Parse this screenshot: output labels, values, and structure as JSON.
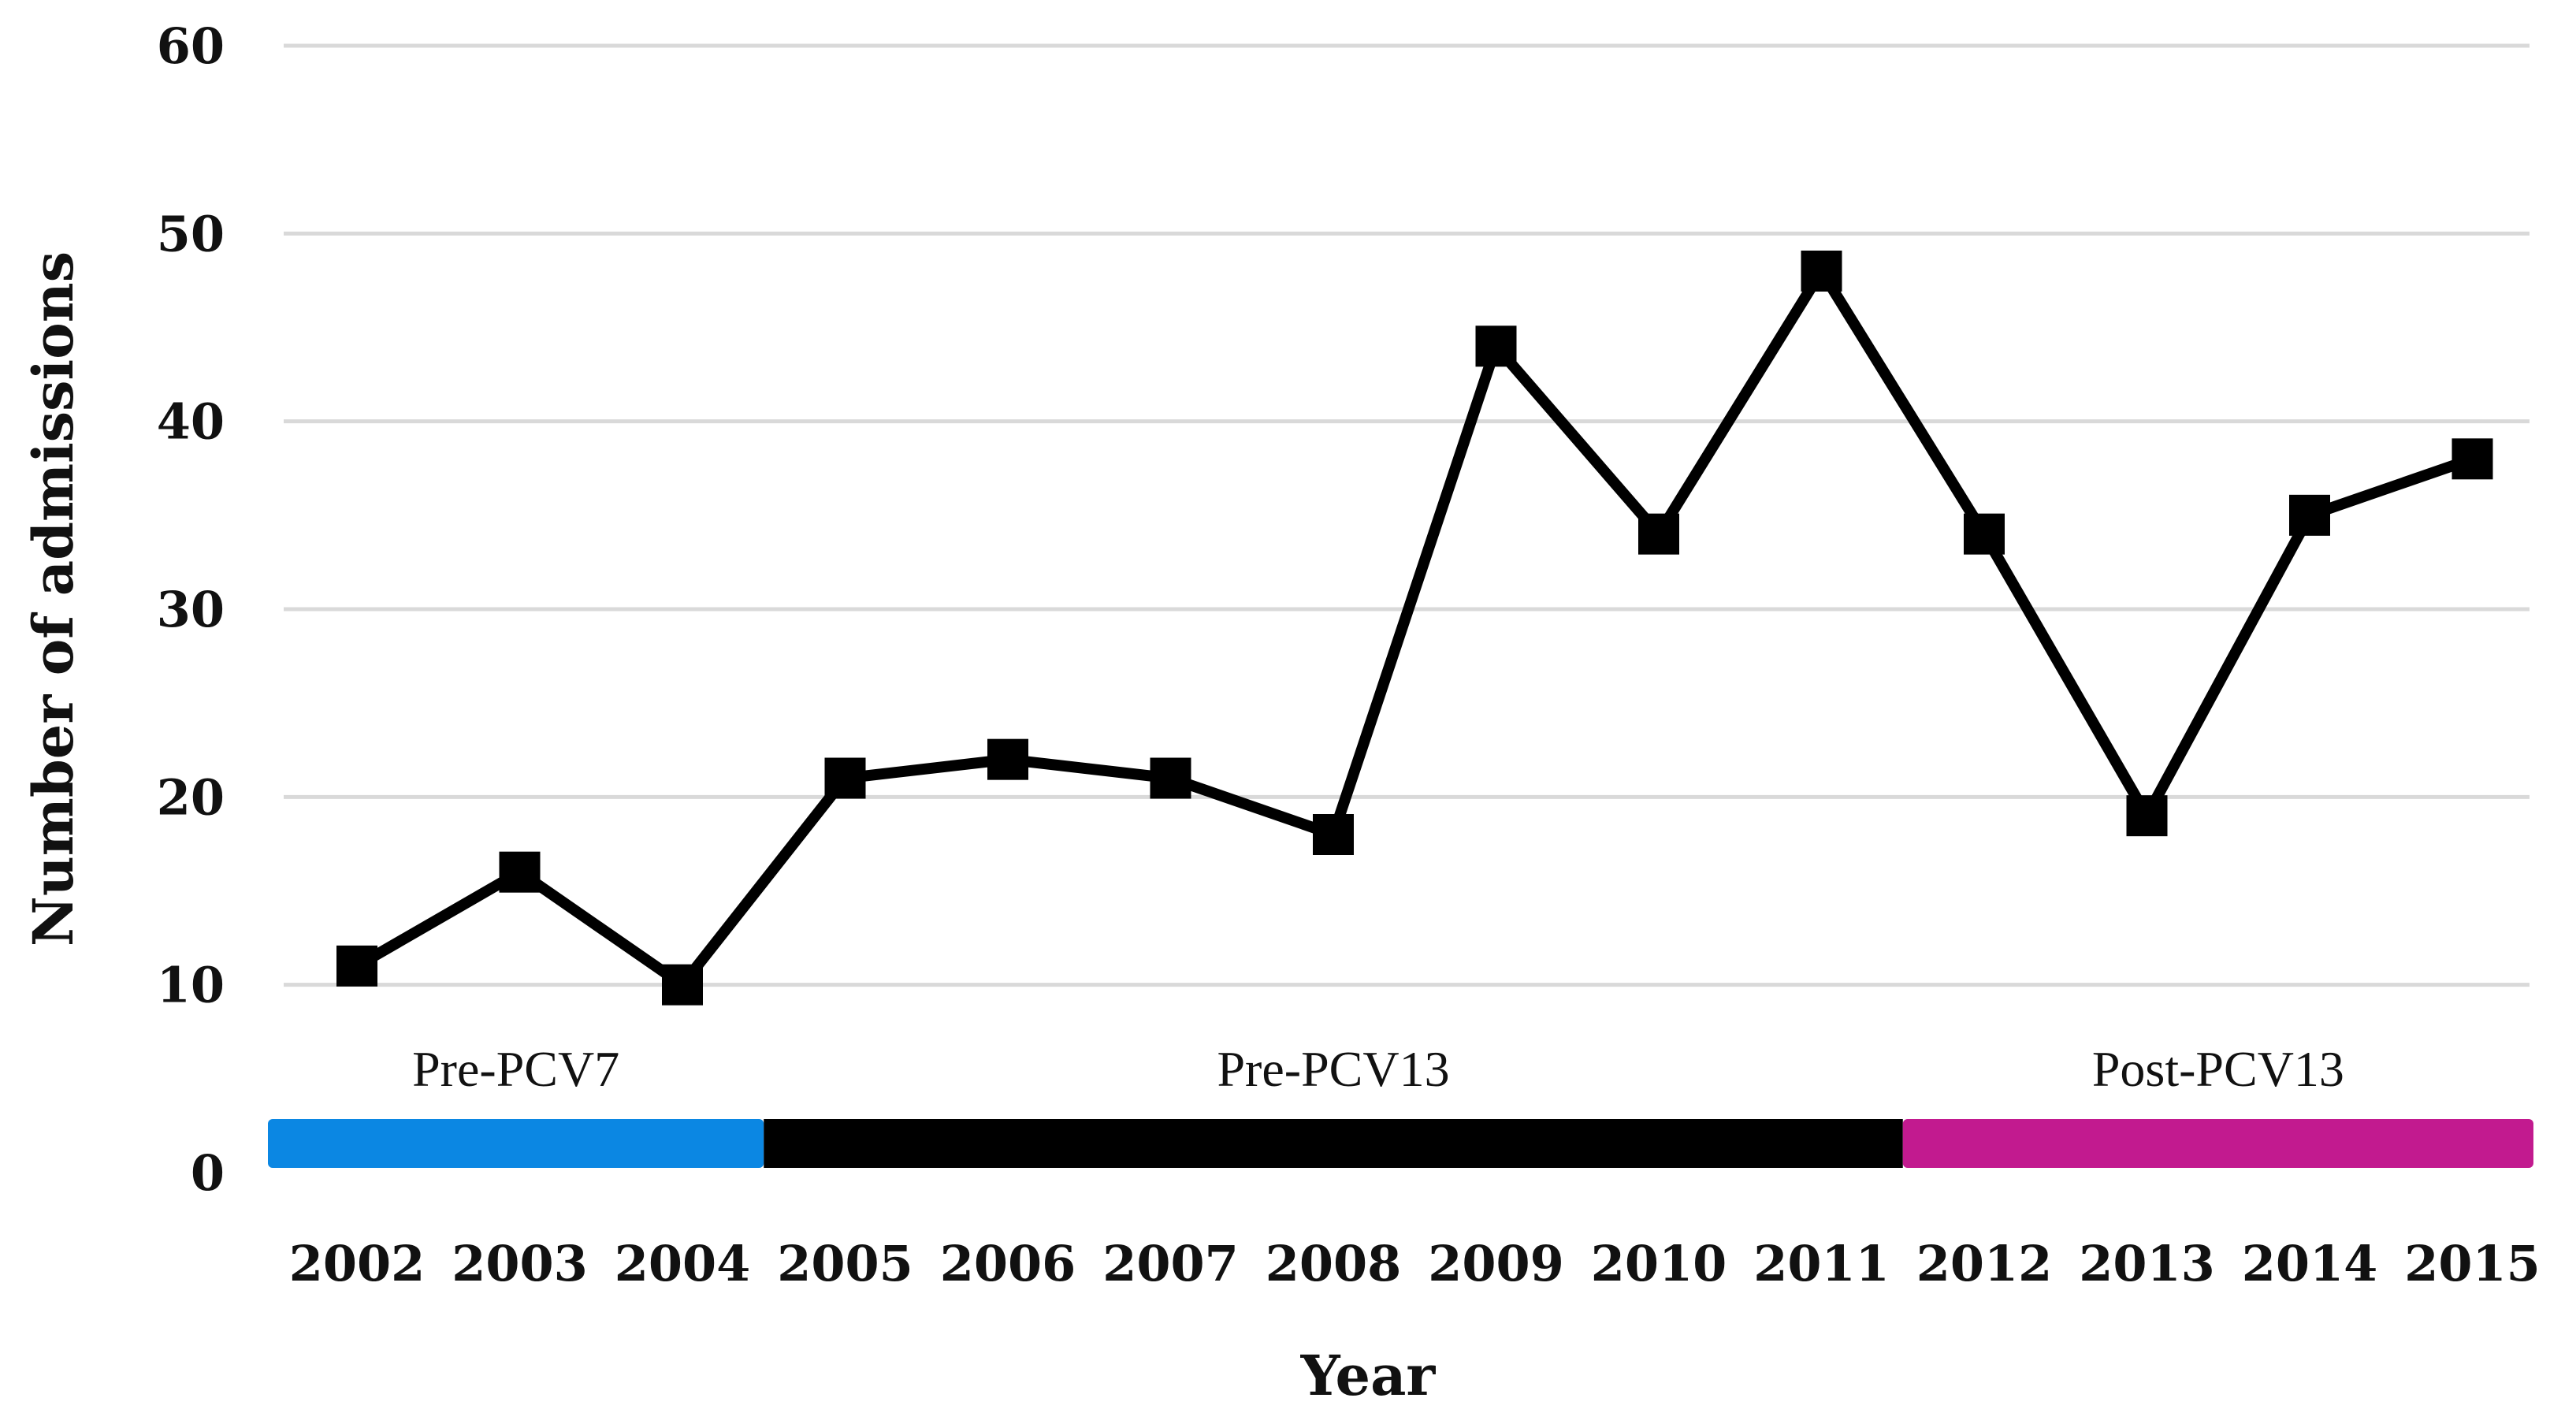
{
  "chart_data": {
    "type": "line",
    "title": "",
    "xlabel": "Year",
    "ylabel": "Number of admissions",
    "ylim": [
      0,
      60
    ],
    "yticks": [
      0,
      10,
      20,
      30,
      40,
      50,
      60
    ],
    "grid": true,
    "legend": "none",
    "marker": "square",
    "colors": {
      "line": "#000000",
      "grid": "#d9d9d9"
    },
    "categories": [
      "2002",
      "2003",
      "2004",
      "2005",
      "2006",
      "2007",
      "2008",
      "2009",
      "2010",
      "2011",
      "2012",
      "2013",
      "2014",
      "2015"
    ],
    "series": [
      {
        "values": [
          11,
          16,
          10,
          21,
          22,
          21,
          18,
          44,
          34,
          48,
          34,
          19,
          35,
          38
        ]
      }
    ],
    "periods": [
      {
        "label": "Pre-PCV7",
        "start_year": "2002",
        "end_year": "2004",
        "color": "#0b87e3"
      },
      {
        "label": "Pre-PCV13",
        "start_year": "2005",
        "end_year": "2011",
        "color": "#000000"
      },
      {
        "label": "Post-PCV13",
        "start_year": "2012",
        "end_year": "2015",
        "color": "#c21a8f"
      }
    ]
  }
}
